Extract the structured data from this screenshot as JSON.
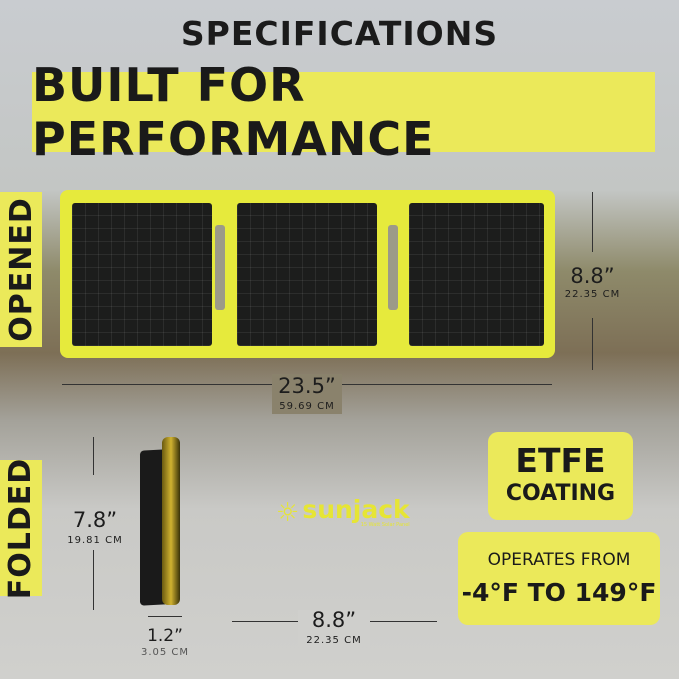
{
  "title": "SPECIFICATIONS",
  "banner": "BUILT FOR PERFORMANCE",
  "opened": {
    "label": "OPENED",
    "height_in": "8.8”",
    "height_cm": "22.35 CM",
    "width_in": "23.5”",
    "width_cm": "59.69 CM"
  },
  "folded": {
    "label": "FOLDED",
    "height_in": "7.8”",
    "height_cm": "19.81 CM",
    "depth_in": "1.2”",
    "depth_cm": "3.05 CM",
    "width_in": "8.8”",
    "width_cm": "22.35 CM"
  },
  "logo": {
    "brand": "sunjack",
    "tagline": "15 Watt Solar Panel"
  },
  "etfe": {
    "line1": "ETFE",
    "line2": "COATING"
  },
  "temp": {
    "line1": "OPERATES FROM",
    "line2": "-4°F TO 149°F"
  },
  "colors": {
    "accent": "#ebe95a",
    "panel": "#1c1d1c"
  }
}
